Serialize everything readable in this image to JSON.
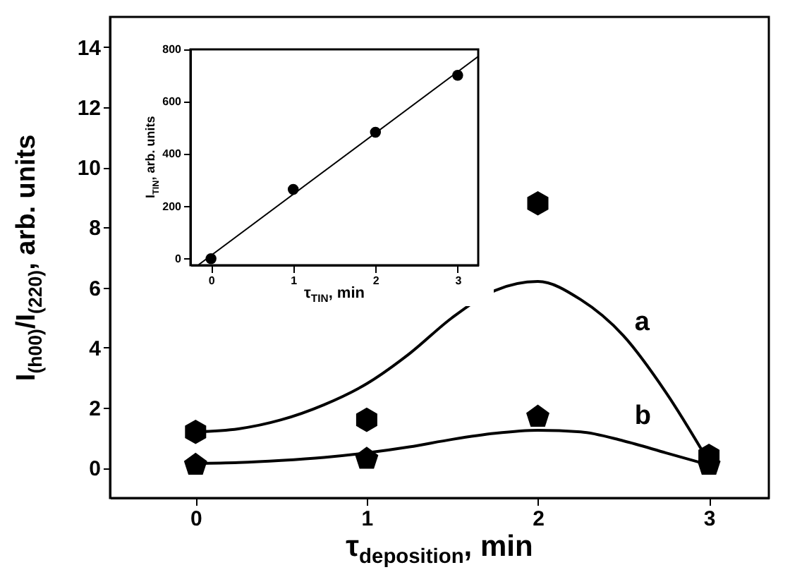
{
  "chart_data": [
    {
      "type": "scatter",
      "xlabel": "τ$_{deposition}$, min",
      "ylabel": "I$_{(h00)}$/I$_{(220)}$, arb. units",
      "xlim": [
        -0.5,
        3.35
      ],
      "ylim": [
        -1,
        15
      ],
      "xticks": [
        0,
        1,
        2,
        3
      ],
      "yticks": [
        0,
        2,
        4,
        6,
        8,
        10,
        12,
        14
      ],
      "grid": false,
      "series": [
        {
          "type": "line",
          "name": "a",
          "color": "#000000",
          "marker": "none",
          "x": [
            0,
            0.25,
            0.5,
            0.75,
            1,
            1.25,
            1.5,
            1.75,
            2,
            2.25,
            2.5,
            2.75,
            3
          ],
          "values": [
            1.2,
            1.3,
            1.6,
            2.1,
            2.8,
            3.8,
            5.0,
            5.9,
            6.2,
            5.6,
            4.4,
            2.5,
            0.2
          ]
        },
        {
          "type": "line",
          "name": "b",
          "color": "#000000",
          "marker": "none",
          "x": [
            0,
            0.25,
            0.5,
            0.75,
            1,
            1.25,
            1.5,
            1.75,
            2,
            2.25,
            2.5,
            2.75,
            3
          ],
          "values": [
            0.15,
            0.18,
            0.25,
            0.35,
            0.5,
            0.7,
            0.95,
            1.15,
            1.25,
            1.2,
            0.9,
            0.5,
            0.1
          ]
        },
        {
          "color": "#000000",
          "x": [
            0,
            1,
            2,
            3
          ],
          "values": [
            1.2,
            1.6,
            8.8,
            0.4
          ]
        },
        {
          "color": "#000000",
          "x": [
            0,
            1,
            2,
            3
          ],
          "values": [
            0.1,
            0.3,
            1.7,
            0.1
          ]
        }
      ]
    },
    {
      "type": "scatter",
      "xlabel": "τ$_{TIN}$, min",
      "ylabel": "I$_{TIN}$, arb. units",
      "xlim": [
        -0.25,
        3.25
      ],
      "ylim": [
        -25,
        800
      ],
      "xticks": [
        0,
        1,
        2,
        3
      ],
      "yticks": [
        0,
        200,
        400,
        600,
        800
      ],
      "grid": false,
      "series": [
        {
          "type": "line",
          "color": "#000000",
          "marker": "none",
          "x": [
            -0.15,
            3.25
          ],
          "values": [
            -23,
            773
          ]
        },
        {
          "color": "#000000",
          "x": [
            0,
            1,
            2,
            3
          ],
          "values": [
            0,
            265,
            483,
            701
          ]
        }
      ]
    }
  ]
}
